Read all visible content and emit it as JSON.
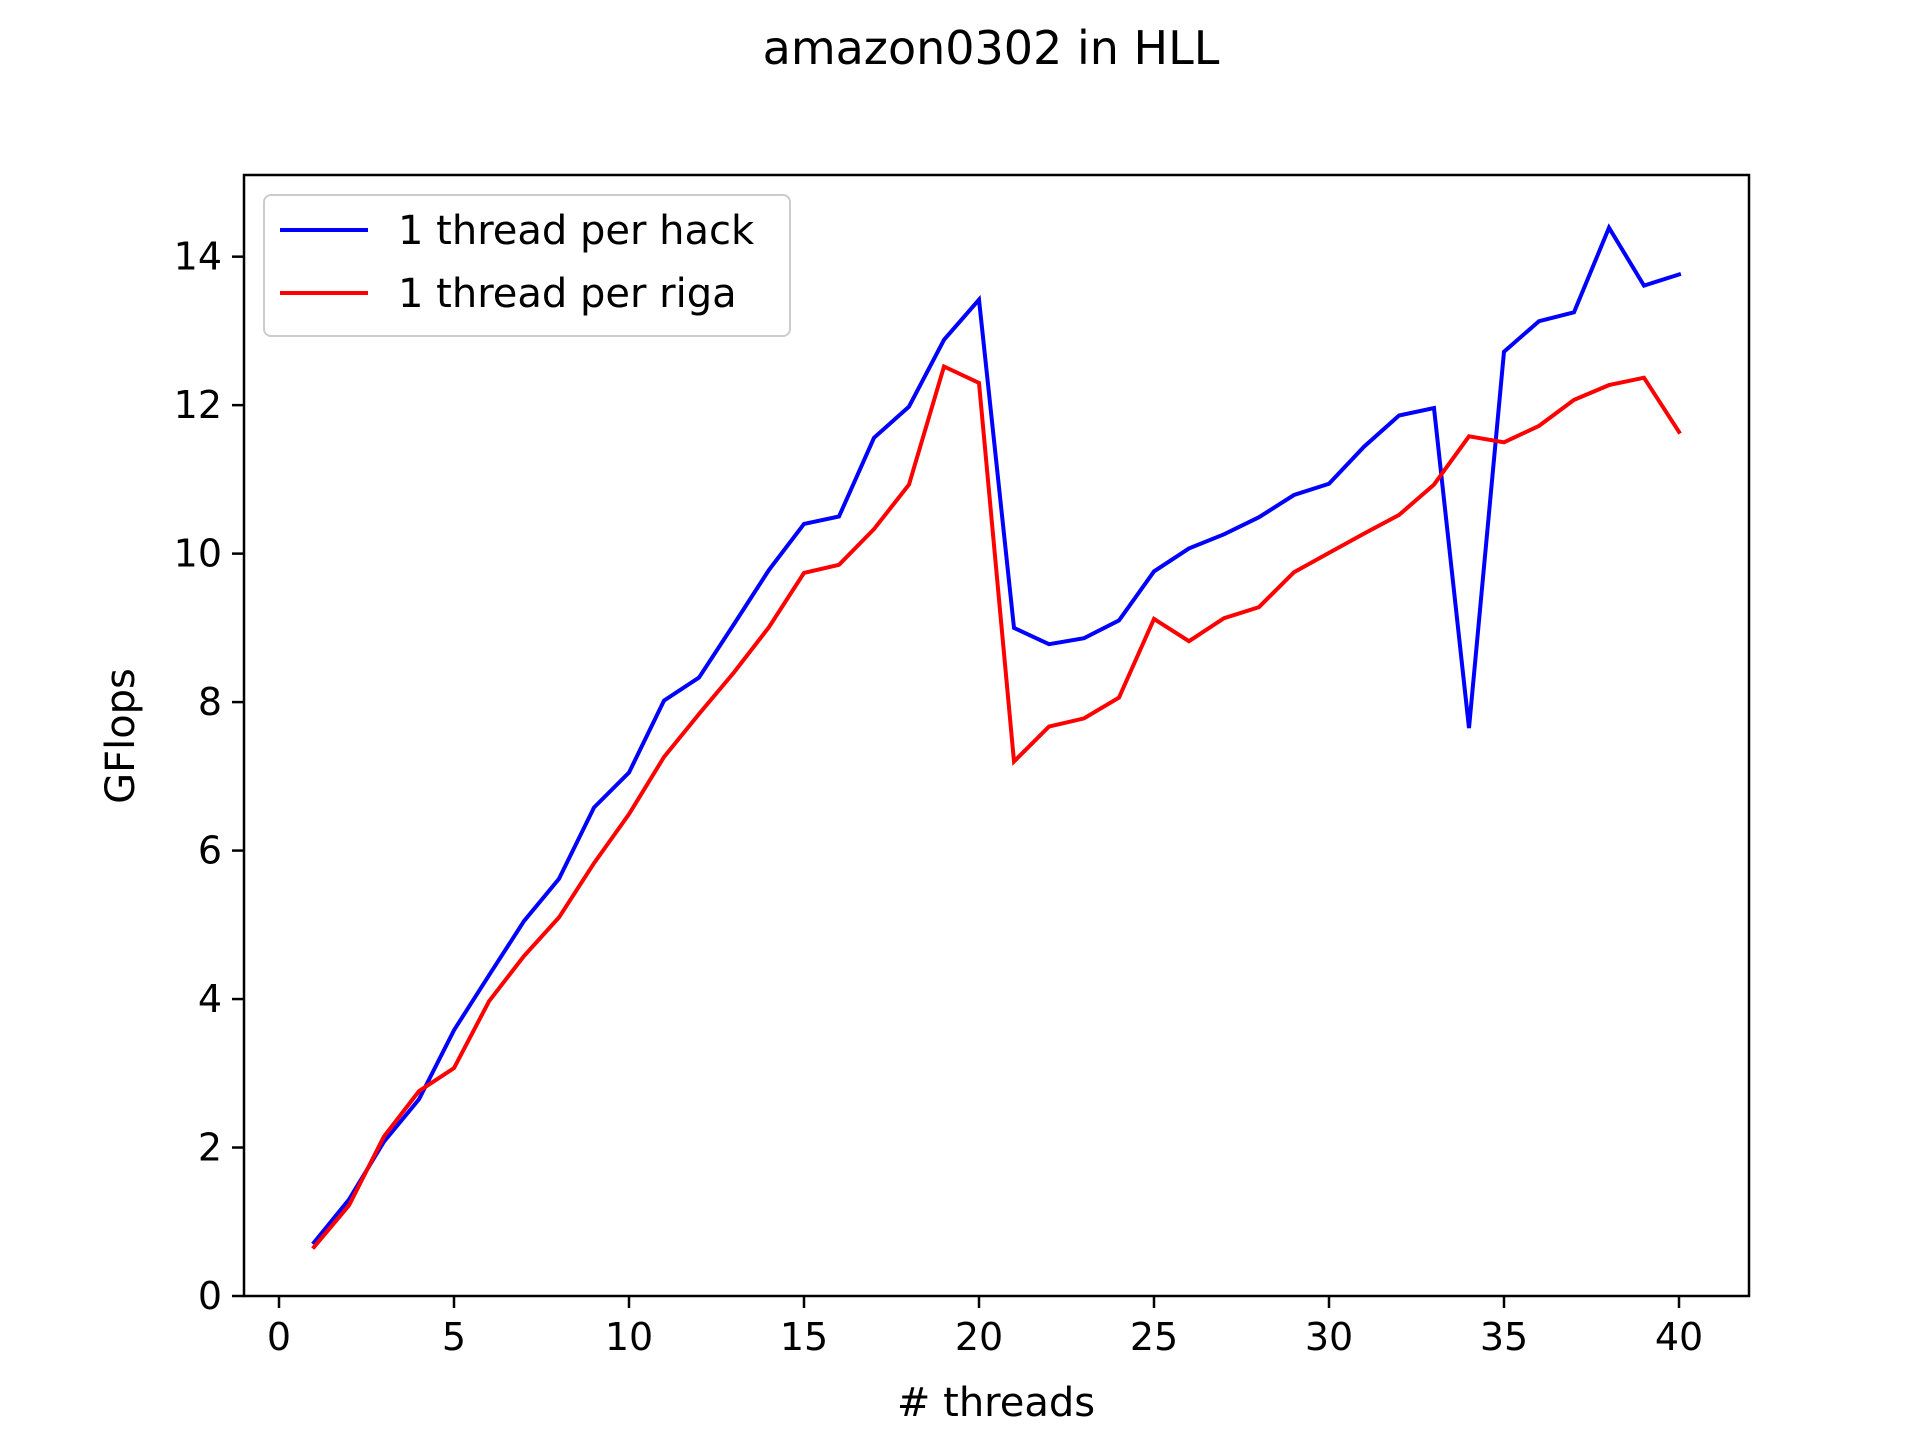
{
  "chart_data": {
    "type": "line",
    "title": "amazon0302 in HLL",
    "xlabel": "# threads",
    "ylabel": "GFlops",
    "xlim": [
      -1,
      42
    ],
    "ylim": [
      0,
      15.1
    ],
    "xticks": [
      0,
      5,
      10,
      15,
      20,
      25,
      30,
      35,
      40
    ],
    "yticks": [
      0,
      2,
      4,
      6,
      8,
      10,
      12,
      14
    ],
    "grid": false,
    "legend_position": "top-left",
    "x": [
      1,
      2,
      3,
      4,
      5,
      6,
      7,
      8,
      9,
      10,
      11,
      12,
      13,
      14,
      15,
      16,
      17,
      18,
      19,
      20,
      21,
      22,
      23,
      24,
      25,
      26,
      27,
      28,
      29,
      30,
      31,
      32,
      33,
      34,
      35,
      36,
      37,
      38,
      39,
      40
    ],
    "series": [
      {
        "name": "1 thread per hack",
        "color": "#0000ff",
        "values": [
          0.72,
          1.3,
          2.08,
          2.65,
          3.58,
          4.32,
          5.05,
          5.62,
          6.58,
          7.05,
          8.02,
          8.33,
          9.05,
          9.78,
          10.4,
          10.5,
          11.56,
          11.98,
          12.88,
          13.42,
          9.0,
          8.78,
          8.86,
          9.1,
          9.76,
          10.07,
          10.26,
          10.49,
          10.79,
          10.94,
          11.44,
          11.86,
          11.96,
          7.65,
          12.72,
          13.13,
          13.25,
          14.39,
          13.61,
          13.76
        ]
      },
      {
        "name": "1 thread per riga",
        "color": "#ff0000",
        "values": [
          0.66,
          1.22,
          2.15,
          2.76,
          3.07,
          3.97,
          4.58,
          5.1,
          5.83,
          6.49,
          7.26,
          7.84,
          8.4,
          9.01,
          9.74,
          9.85,
          10.33,
          10.93,
          12.52,
          12.3,
          7.2,
          7.67,
          7.78,
          8.06,
          9.12,
          8.82,
          9.13,
          9.28,
          9.75,
          10.01,
          10.27,
          10.52,
          10.93,
          11.58,
          11.5,
          11.72,
          12.07,
          12.27,
          12.37,
          11.64
        ]
      }
    ]
  }
}
